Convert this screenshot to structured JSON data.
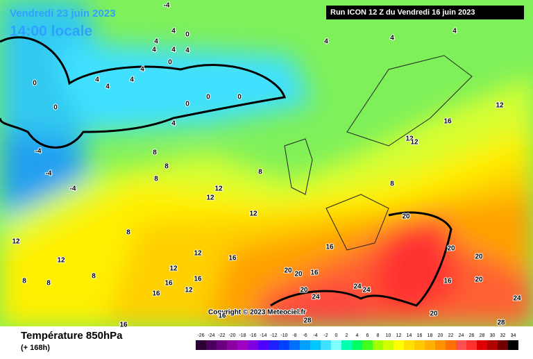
{
  "header": {
    "valid_date": "Vendredi 23 juin 2023",
    "local_time": "14:00 locale",
    "run": "Run ICON 12 Z du Vendredi 16 juin 2023"
  },
  "footer": {
    "field": "Température 850hPa",
    "lead": "(+ 168h)",
    "copyright": "Copyright © 2023 Meteociel.fr"
  },
  "legend": {
    "values": [
      -26,
      -24,
      -22,
      -20,
      -18,
      -16,
      -14,
      -12,
      -10,
      -8,
      -6,
      -4,
      -2,
      0,
      2,
      4,
      6,
      8,
      10,
      12,
      14,
      16,
      18,
      20,
      22,
      24,
      26,
      28,
      30,
      32,
      34
    ],
    "colors": [
      "#2d0035",
      "#4b0060",
      "#6a0080",
      "#8a00a0",
      "#a000c0",
      "#8000e0",
      "#5000ff",
      "#2020ff",
      "#0040ff",
      "#0070ff",
      "#00a0ff",
      "#00c8ff",
      "#40e0ff",
      "#80ffff",
      "#00ffb0",
      "#00ff60",
      "#40ff20",
      "#a0ff00",
      "#d0ff00",
      "#ffff00",
      "#ffe000",
      "#ffc800",
      "#ffb000",
      "#ff9000",
      "#ff7000",
      "#ff5050",
      "#ff3030",
      "#e00000",
      "#b00000",
      "#700000",
      "#000000"
    ]
  },
  "map_labels": [
    -4,
    4,
    4,
    0,
    4,
    4,
    4,
    0,
    4,
    4,
    0,
    0,
    4,
    4,
    0,
    0,
    4,
    0,
    -4,
    -4,
    -4,
    4,
    4,
    4,
    8,
    8,
    8,
    8,
    12,
    12,
    8,
    12,
    12,
    12,
    16,
    16,
    16,
    12,
    16,
    16,
    8,
    8,
    8,
    16,
    20,
    20,
    16,
    20,
    24,
    24,
    20,
    24,
    28,
    20,
    20,
    20,
    16,
    12,
    12,
    12,
    16,
    20,
    24,
    28,
    16,
    12,
    8,
    12
  ]
}
